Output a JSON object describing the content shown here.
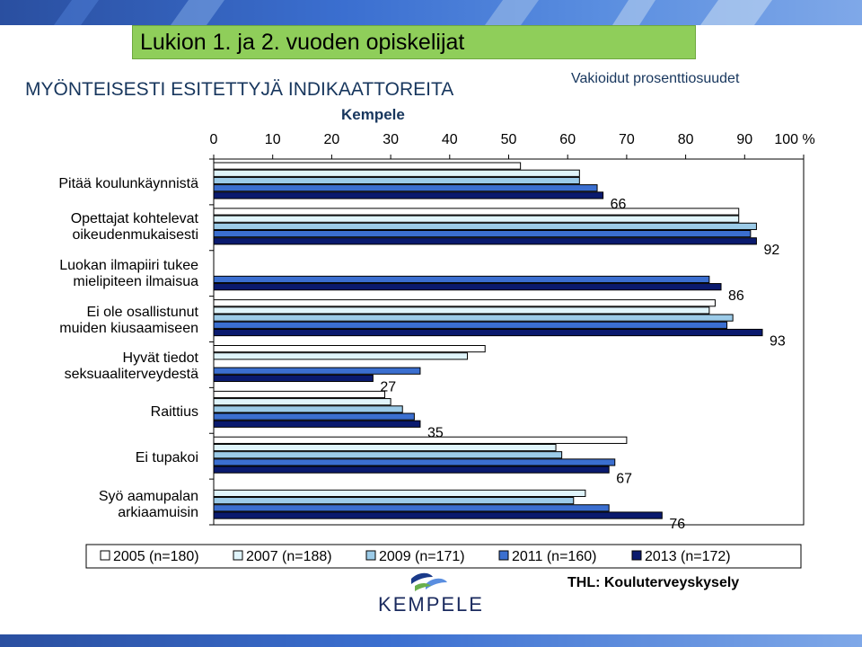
{
  "header": {
    "title": "Lukion 1. ja 2. vuoden opiskelijat",
    "subtitle": "MYÖNTEISESTI ESITETTYJÄ INDIKAATTOREITA",
    "standardized_note": "Vakioidut prosenttiosuudet",
    "municipality": "Kempele"
  },
  "footer": {
    "source": "THL: Kouluterveyskysely",
    "logo_text": "KEMPELE"
  },
  "colors": {
    "title_bg": "#8fce5a",
    "series": [
      "#ffffff",
      "#dff4fb",
      "#9ccbe8",
      "#3b6fd0",
      "#0a1a6e"
    ]
  },
  "chart_data": {
    "type": "bar",
    "orientation": "horizontal",
    "xlim": [
      0,
      100
    ],
    "x_ticks": [
      "0",
      "10",
      "20",
      "30",
      "40",
      "50",
      "60",
      "70",
      "80",
      "90",
      "100 %"
    ],
    "grid": false,
    "legend_position": "bottom",
    "categories": [
      "Pitää koulunkäynnistä",
      "Opettajat kohtelevat oikeudenmukaisesti",
      "Luokan ilmapiiri tukee mielipiteen ilmaisua",
      "Ei ole osallistunut muiden kiusaamiseen",
      "Hyvät tiedot seksuaaliterveydestä",
      "Raittius",
      "Ei tupakoi",
      "Syö aamupalan arkiaamuisin"
    ],
    "series": [
      {
        "name": "2005 (n=180)",
        "values": [
          52,
          89,
          0,
          85,
          46,
          29,
          70,
          0
        ]
      },
      {
        "name": "2007 (n=188)",
        "values": [
          62,
          89,
          0,
          84,
          43,
          30,
          58,
          63
        ]
      },
      {
        "name": "2009 (n=171)",
        "values": [
          62,
          92,
          0,
          88,
          0,
          32,
          59,
          61
        ]
      },
      {
        "name": "2011 (n=160)",
        "values": [
          65,
          91,
          84,
          87,
          35,
          34,
          68,
          67
        ]
      },
      {
        "name": "2013 (n=172)",
        "values": [
          66,
          92,
          86,
          93,
          27,
          35,
          67,
          76
        ]
      }
    ],
    "data_labels": [
      "66",
      "92",
      "86",
      "93",
      "27",
      "35",
      "67",
      "76"
    ]
  }
}
